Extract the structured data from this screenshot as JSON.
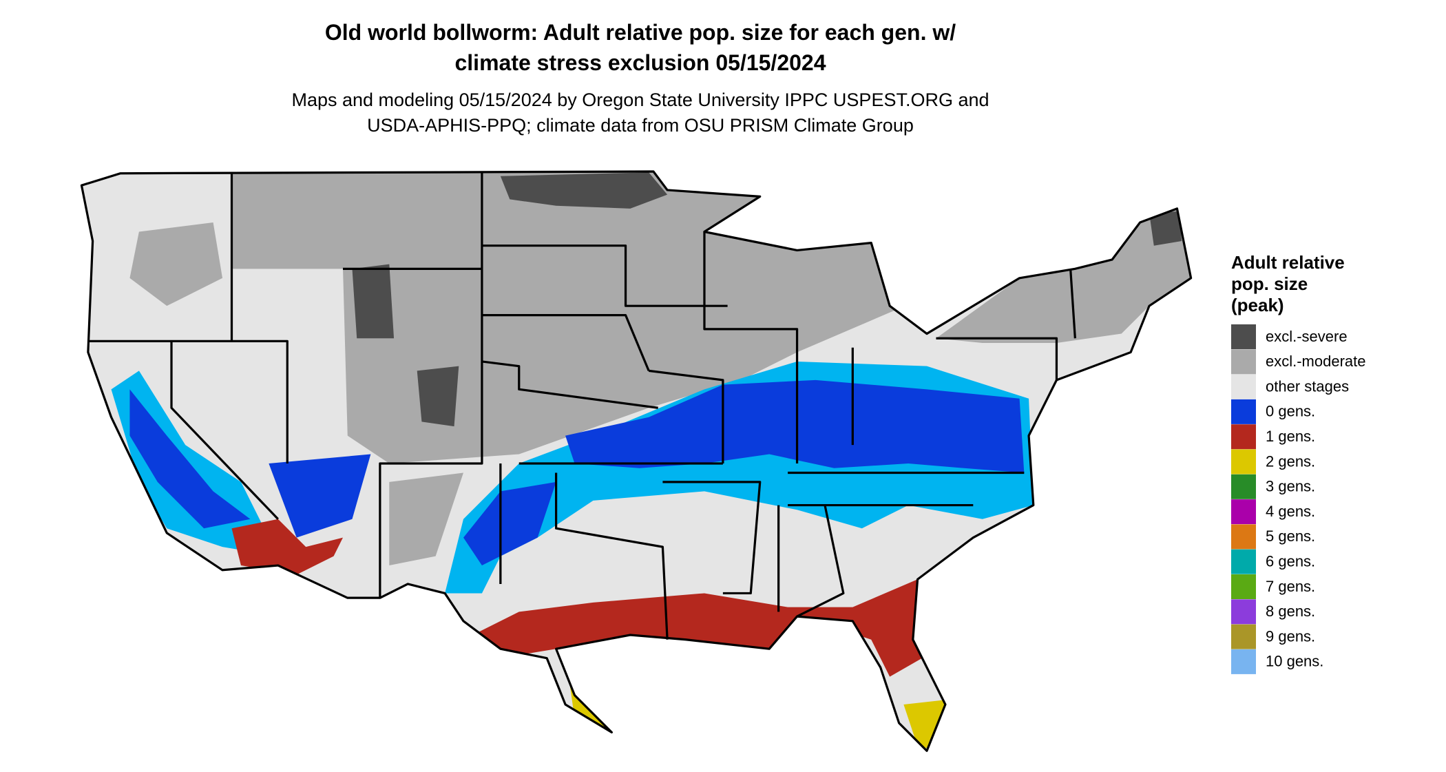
{
  "header": {
    "title": [
      "Old world bollworm: Adult relative pop. size for each gen. w/",
      "climate stress exclusion 05/15/2024"
    ],
    "subtitle": [
      "Maps and modeling 05/15/2024 by Oregon State University IPPC USPEST.ORG and",
      "USDA-APHIS-PPQ; climate data from OSU PRISM Climate Group"
    ]
  },
  "legend": {
    "title": [
      "Adult relative",
      "pop. size",
      "(peak)"
    ],
    "items": [
      {
        "label": "excl.-severe",
        "color": "#4d4d4d"
      },
      {
        "label": "excl.-moderate",
        "color": "#aaaaaa"
      },
      {
        "label": "other stages",
        "color": "#e5e5e5"
      },
      {
        "label": "0 gens.",
        "color": "#0a3cdc"
      },
      {
        "label": "1 gens.",
        "color": "#b4281e"
      },
      {
        "label": "2 gens.",
        "color": "#dcc800"
      },
      {
        "label": "3 gens.",
        "color": "#288c28"
      },
      {
        "label": "4 gens.",
        "color": "#aa00aa"
      },
      {
        "label": "5 gens.",
        "color": "#dc7814"
      },
      {
        "label": "6 gens.",
        "color": "#00aaaa"
      },
      {
        "label": "7 gens.",
        "color": "#5aaa14"
      },
      {
        "label": "8 gens.",
        "color": "#8c3cdc"
      },
      {
        "label": "9 gens.",
        "color": "#aa9628"
      },
      {
        "label": "10 gens.",
        "color": "#78b4f0"
      }
    ]
  }
}
